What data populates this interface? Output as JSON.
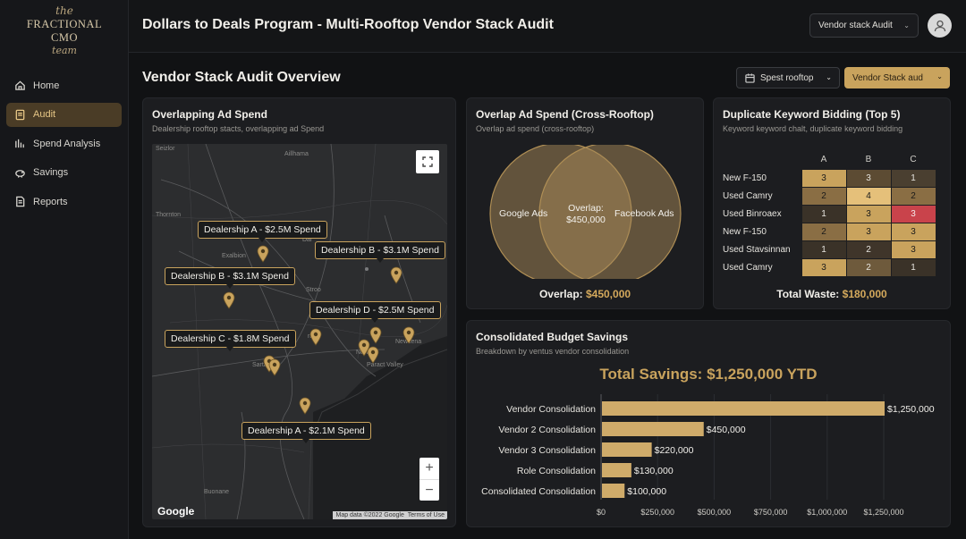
{
  "brand": {
    "line1": "the",
    "line2": "FRACTIONAL CMO",
    "line3": "team"
  },
  "nav": [
    {
      "label": "Home",
      "icon": "home-icon",
      "active": false
    },
    {
      "label": "Audit",
      "icon": "document-icon",
      "active": true
    },
    {
      "label": "Spend Analysis",
      "icon": "bar-chart-icon",
      "active": false
    },
    {
      "label": "Savings",
      "icon": "piggy-bank-icon",
      "active": false
    },
    {
      "label": "Reports",
      "icon": "report-icon",
      "active": false
    }
  ],
  "header": {
    "title": "Dollars to Deals Program - Multi-Rooftop Vendor Stack Audit",
    "select_value": "Vendor stack Audit"
  },
  "page": {
    "title": "Vendor Stack Audit Overview",
    "rooftop_button": "Spest rooftop",
    "vendor_button": "Vendor Stack aud"
  },
  "map_card": {
    "title": "Overlapping Ad Spend",
    "subtitle": "Dealership rooftop stacts, overlapping ad Spend",
    "labels": [
      "Dealership A - $2.5M Spend",
      "Dealership B - $3.1M Spend",
      "Dealership B - $3.1M Spend",
      "Dealership D - $2.5M Spend",
      "Dealership C - $1.8M Spend",
      "Dealership A - $2.1M Spend"
    ],
    "towns": [
      "Seizlor",
      "Aillhama",
      "Thornton",
      "Exalbion",
      "Dal",
      "Stroo",
      "Newcena",
      "Paract Valley",
      "Sartago",
      "Buonane",
      "Newn",
      "rano"
    ],
    "google": "Google",
    "attribution": [
      "Map data ©2022 Google",
      "Terms of Use"
    ]
  },
  "venn_card": {
    "title": "Overlap Ad Spend (Cross-Rooftop)",
    "subtitle": "Overlap ad spend (cross-rooftop)",
    "left": "Google Ads",
    "right": "Facebook Ads",
    "center_1": "Overlap:",
    "center_2": "$450,000",
    "footer_label": "Overlap:",
    "footer_value": "$450,000"
  },
  "heatmap_card": {
    "title": "Duplicate Keyword Bidding (Top 5)",
    "subtitle": "Keyword keyword chalt, duplicate keyword bidding",
    "columns": [
      "A",
      "B",
      "C"
    ],
    "rows": [
      {
        "label": "New F-150",
        "values": [
          3,
          3,
          1
        ]
      },
      {
        "label": "Used Camry",
        "values": [
          2,
          4,
          2
        ]
      },
      {
        "label": "Used Binroaex",
        "values": [
          1,
          3,
          3
        ]
      },
      {
        "label": "New F-150",
        "values": [
          2,
          3,
          3
        ]
      },
      {
        "label": "Used Stavsinnan",
        "values": [
          1,
          2,
          3
        ]
      },
      {
        "label": "Used Camry",
        "values": [
          3,
          2,
          1
        ]
      }
    ],
    "footer_label": "Total Waste:",
    "footer_value": "$180,000"
  },
  "savings_card": {
    "title": "Consolidated Budget Savings",
    "subtitle": "Breakdown by ventus vendor consolidation",
    "total": "Total Savings: $1,250,000 YTD"
  },
  "chart_data": {
    "type": "bar",
    "orientation": "horizontal",
    "categories": [
      "Vendor Consolidation",
      "Vendor 2 Consolidation",
      "Vendor 3 Consolidation",
      "Role Consolidation",
      "Consolidated Consolidation"
    ],
    "values": [
      1250000,
      450000,
      220000,
      130000,
      100000
    ],
    "value_labels": [
      "$1,250,000",
      "$450,000",
      "$220,000",
      "$130,000",
      "$100,000"
    ],
    "xlim": [
      0,
      1250000
    ],
    "xticks": [
      "$0",
      "$250,000",
      "$500,000",
      "$750,000",
      "$1,000,000",
      "$1,250,000"
    ],
    "bar_color": "#cfab6a",
    "grid": true
  },
  "colors": {
    "accent": "#c9a35d",
    "background": "#111214",
    "card": "#1c1d20"
  }
}
